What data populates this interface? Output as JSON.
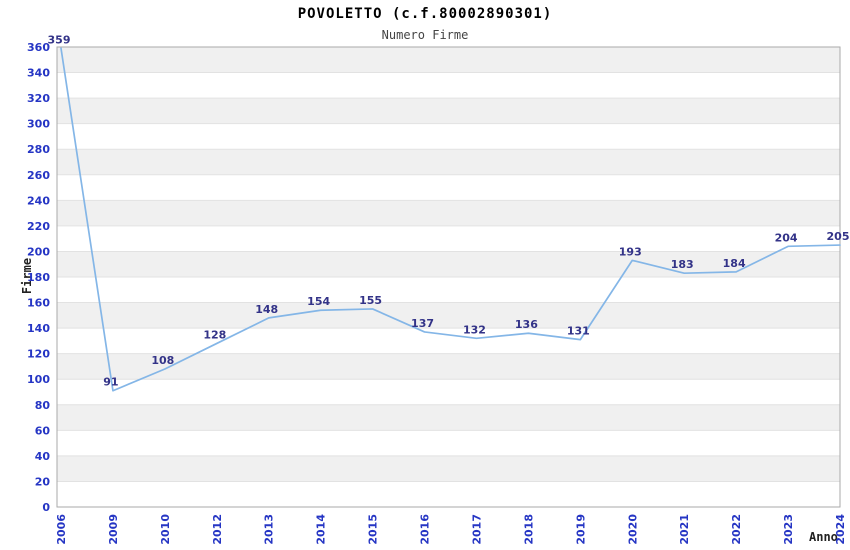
{
  "chart_data": {
    "type": "line",
    "title": "POVOLETTO (c.f.80002890301)",
    "subtitle": "Numero Firme",
    "xlabel": "Anno",
    "ylabel": "Firme",
    "categories": [
      "2006",
      "2009",
      "2010",
      "2012",
      "2013",
      "2014",
      "2015",
      "2016",
      "2017",
      "2018",
      "2019",
      "2020",
      "2021",
      "2022",
      "2023",
      "2024"
    ],
    "values": [
      359,
      91,
      108,
      128,
      148,
      154,
      155,
      137,
      132,
      136,
      131,
      193,
      183,
      184,
      204,
      205
    ],
    "ylim": [
      0,
      360
    ],
    "ytick_step": 20,
    "grid": "horizontal",
    "plot_bands": "alternating-gray",
    "legend": "none",
    "markers": "none",
    "data_labels": "above-points",
    "x_tick_rotation": -90,
    "colors": {
      "line": "#84b6e7",
      "tick_label": "#2535c4",
      "data_label": "#333388",
      "band": "#f0f0f0",
      "gridline": "#e2e2e2",
      "axis_border": "#aaaaaa",
      "title": "#000000",
      "subtitle": "#444444",
      "axis_title": "#222222"
    }
  }
}
